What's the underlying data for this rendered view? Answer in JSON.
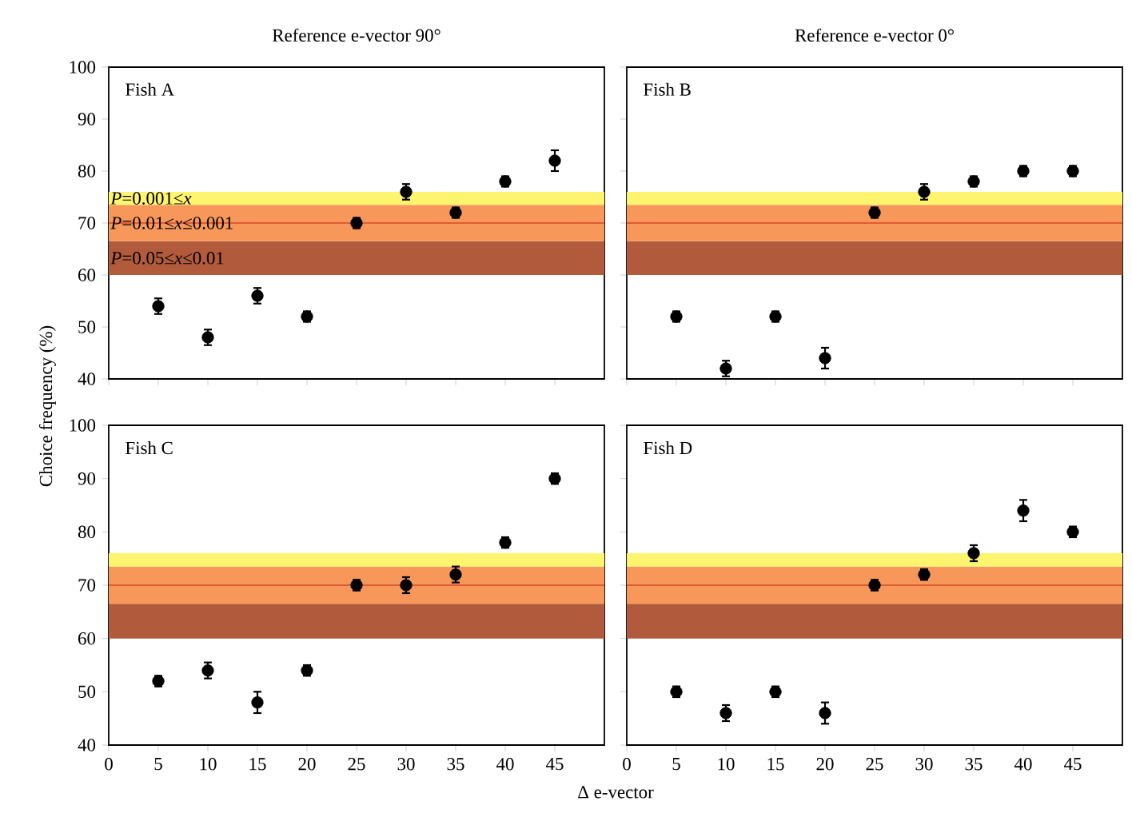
{
  "chart_data": [
    {
      "type": "scatter",
      "title": "Reference e-vector 90°",
      "annotations": [
        "Fish A"
      ],
      "x": [
        5,
        10,
        15,
        20,
        25,
        30,
        35,
        40,
        45
      ],
      "values": [
        54,
        48,
        56,
        52,
        70,
        76,
        72,
        78,
        82
      ],
      "errors": [
        1.5,
        1.5,
        1.5,
        1,
        1,
        1.5,
        1,
        1,
        2
      ],
      "color": "#000000",
      "marker": "circle",
      "xlim": [
        0,
        50
      ],
      "ylim": [
        40,
        100
      ],
      "xticks": [
        0,
        5,
        10,
        15,
        20,
        25,
        30,
        35,
        40,
        45
      ],
      "yticks": [
        40,
        50,
        60,
        70,
        80,
        90,
        100
      ],
      "tick_labels": "y",
      "bands": [
        {
          "axis": "y",
          "from": 60,
          "to": 66.5,
          "color": "#b25a3c",
          "label": "*P*=0.05≤*x*≤0.01"
        },
        {
          "axis": "y",
          "from": 66.5,
          "to": 73.5,
          "color": "#f7985a",
          "label": "*P*=0.01≤*x*≤0.001"
        },
        {
          "axis": "y",
          "from": 73.5,
          "to": 76,
          "color": "#fff46e",
          "label": "*P*=0.001≤*x*"
        }
      ],
      "ref_lines": [
        {
          "axis": "y",
          "value": 70,
          "color": "#d8482a"
        }
      ]
    },
    {
      "type": "scatter",
      "title": "Reference e-vector 0°",
      "annotations": [
        "Fish B"
      ],
      "x": [
        5,
        10,
        15,
        20,
        25,
        30,
        35,
        40,
        45
      ],
      "values": [
        52,
        42,
        52,
        44,
        72,
        76,
        78,
        80,
        80
      ],
      "errors": [
        1,
        1.5,
        1,
        2,
        1,
        1.5,
        1,
        1,
        1
      ],
      "color": "#000000",
      "marker": "circle",
      "xlim": [
        0,
        50
      ],
      "ylim": [
        40,
        100
      ],
      "xticks": [
        0,
        5,
        10,
        15,
        20,
        25,
        30,
        35,
        40,
        45
      ],
      "yticks": [
        40,
        50,
        60,
        70,
        80,
        90,
        100
      ],
      "tick_labels": false,
      "bands": [
        {
          "axis": "y",
          "from": 60,
          "to": 66.5,
          "color": "#b25a3c"
        },
        {
          "axis": "y",
          "from": 66.5,
          "to": 73.5,
          "color": "#f7985a"
        },
        {
          "axis": "y",
          "from": 73.5,
          "to": 76,
          "color": "#fff46e"
        }
      ],
      "ref_lines": [
        {
          "axis": "y",
          "value": 70,
          "color": "#d8482a"
        }
      ]
    },
    {
      "type": "scatter",
      "ylabel": "Choice frequency (%)",
      "xlabel": "Δ e-vector",
      "annotations": [
        "Fish C"
      ],
      "x": [
        5,
        10,
        15,
        20,
        25,
        30,
        35,
        40,
        45
      ],
      "values": [
        52,
        54,
        48,
        54,
        70,
        70,
        72,
        78,
        90
      ],
      "errors": [
        1,
        1.5,
        2,
        1,
        1,
        1.5,
        1.5,
        1,
        1
      ],
      "color": "#000000",
      "marker": "circle",
      "xlim": [
        0,
        50
      ],
      "ylim": [
        40,
        100
      ],
      "xticks": [
        0,
        5,
        10,
        15,
        20,
        25,
        30,
        35,
        40,
        45
      ],
      "yticks": [
        40,
        50,
        60,
        70,
        80,
        90,
        100
      ],
      "bands": [
        {
          "axis": "y",
          "from": 60,
          "to": 66.5,
          "color": "#b25a3c"
        },
        {
          "axis": "y",
          "from": 66.5,
          "to": 73.5,
          "color": "#f7985a"
        },
        {
          "axis": "y",
          "from": 73.5,
          "to": 76,
          "color": "#fff46e"
        }
      ],
      "ref_lines": [
        {
          "axis": "y",
          "value": 70,
          "color": "#d8482a"
        }
      ]
    },
    {
      "type": "scatter",
      "annotations": [
        "Fish D"
      ],
      "x": [
        5,
        10,
        15,
        20,
        25,
        30,
        35,
        40,
        45
      ],
      "values": [
        50,
        46,
        50,
        46,
        70,
        72,
        76,
        84,
        80
      ],
      "errors": [
        1,
        1.5,
        1,
        2,
        1,
        1,
        1.5,
        2,
        1
      ],
      "color": "#000000",
      "marker": "circle",
      "xlim": [
        0,
        50
      ],
      "ylim": [
        40,
        100
      ],
      "xticks": [
        0,
        5,
        10,
        15,
        20,
        25,
        30,
        35,
        40,
        45
      ],
      "yticks": [
        40,
        50,
        60,
        70,
        80,
        90,
        100
      ],
      "tick_labels": "x",
      "bands": [
        {
          "axis": "y",
          "from": 60,
          "to": 66.5,
          "color": "#b25a3c"
        },
        {
          "axis": "y",
          "from": 66.5,
          "to": 73.5,
          "color": "#f7985a"
        },
        {
          "axis": "y",
          "from": 73.5,
          "to": 76,
          "color": "#fff46e"
        }
      ],
      "ref_lines": [
        {
          "axis": "y",
          "value": 70,
          "color": "#d8482a"
        }
      ]
    }
  ]
}
